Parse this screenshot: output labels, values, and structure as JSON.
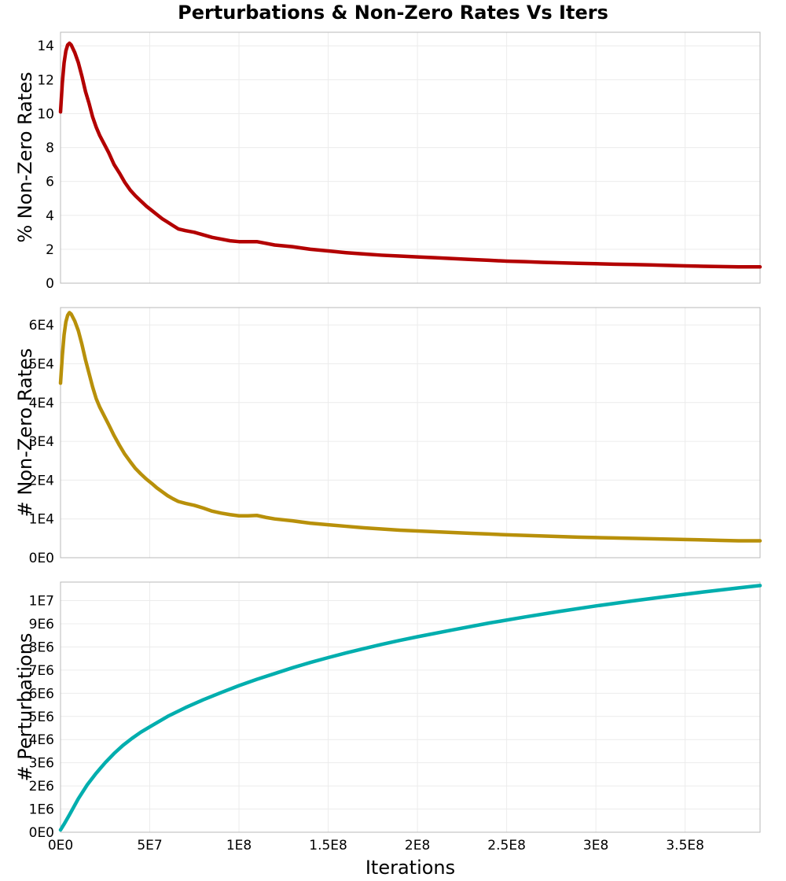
{
  "chart_data": [
    {
      "type": "line",
      "title": "Perturbations & Non-Zero Rates Vs Iters",
      "xlabel": "",
      "ylabel": "% Non-Zero Rates",
      "xlim": [
        0,
        392000000
      ],
      "ylim": [
        0,
        14.8
      ],
      "yticks": [
        0,
        2,
        4,
        6,
        8,
        10,
        12,
        14
      ],
      "ytick_labels": [
        "0",
        "2",
        "4",
        "6",
        "8",
        "10",
        "12",
        "14"
      ],
      "color": "#b30000",
      "series": [
        {
          "name": "% Non-Zero Rates",
          "x": [
            0,
            1000000,
            2000000,
            3000000,
            4000000,
            5000000,
            6000000,
            8000000,
            10000000,
            12000000,
            14000000,
            16000000,
            18000000,
            20000000,
            22000000,
            24000000,
            27000000,
            30000000,
            33000000,
            36000000,
            39000000,
            42000000,
            45000000,
            48000000,
            51000000,
            54000000,
            57000000,
            60000000,
            63000000,
            66000000,
            70000000,
            75000000,
            80000000,
            85000000,
            90000000,
            95000000,
            100000000,
            105000000,
            110000000,
            115000000,
            120000000,
            130000000,
            140000000,
            150000000,
            160000000,
            170000000,
            180000000,
            190000000,
            200000000,
            210000000,
            220000000,
            230000000,
            240000000,
            250000000,
            260000000,
            270000000,
            280000000,
            290000000,
            300000000,
            310000000,
            320000000,
            330000000,
            340000000,
            350000000,
            360000000,
            370000000,
            380000000,
            392000000
          ],
          "y": [
            10.1,
            11.8,
            13.0,
            13.7,
            14.05,
            14.15,
            14.05,
            13.6,
            13.0,
            12.2,
            11.3,
            10.6,
            9.8,
            9.2,
            8.7,
            8.3,
            7.7,
            7.0,
            6.5,
            5.95,
            5.5,
            5.15,
            4.85,
            4.55,
            4.3,
            4.05,
            3.8,
            3.6,
            3.4,
            3.2,
            3.1,
            3.0,
            2.85,
            2.7,
            2.6,
            2.5,
            2.45,
            2.45,
            2.45,
            2.35,
            2.25,
            2.15,
            2.0,
            1.9,
            1.8,
            1.72,
            1.65,
            1.6,
            1.55,
            1.5,
            1.45,
            1.4,
            1.35,
            1.3,
            1.27,
            1.23,
            1.2,
            1.17,
            1.15,
            1.12,
            1.1,
            1.08,
            1.05,
            1.02,
            1.0,
            0.98,
            0.96,
            0.96
          ]
        }
      ]
    },
    {
      "type": "line",
      "xlabel": "",
      "ylabel": "# Non-Zero Rates",
      "xlim": [
        0,
        392000000
      ],
      "ylim": [
        0,
        64500
      ],
      "yticks": [
        0,
        10000,
        20000,
        30000,
        40000,
        50000,
        60000
      ],
      "ytick_labels": [
        "0E0",
        "1E4",
        "2E4",
        "3E4",
        "4E4",
        "5E4",
        "6E4"
      ],
      "color": "#b8900a",
      "series": [
        {
          "name": "# Non-Zero Rates",
          "x": [
            0,
            1000000,
            2000000,
            3000000,
            4000000,
            5000000,
            6000000,
            8000000,
            10000000,
            12000000,
            14000000,
            16000000,
            18000000,
            20000000,
            22000000,
            24000000,
            27000000,
            30000000,
            33000000,
            36000000,
            39000000,
            42000000,
            45000000,
            48000000,
            51000000,
            54000000,
            57000000,
            60000000,
            63000000,
            66000000,
            70000000,
            75000000,
            80000000,
            85000000,
            90000000,
            95000000,
            100000000,
            105000000,
            110000000,
            115000000,
            120000000,
            130000000,
            140000000,
            150000000,
            160000000,
            170000000,
            180000000,
            190000000,
            200000000,
            210000000,
            220000000,
            230000000,
            240000000,
            250000000,
            260000000,
            270000000,
            280000000,
            290000000,
            300000000,
            310000000,
            320000000,
            330000000,
            340000000,
            350000000,
            360000000,
            370000000,
            380000000,
            392000000
          ],
          "y": [
            45000,
            52000,
            57500,
            60800,
            62500,
            63200,
            62800,
            61000,
            58500,
            55000,
            51000,
            47500,
            44000,
            41000,
            38800,
            37000,
            34300,
            31500,
            29000,
            26700,
            24800,
            23000,
            21600,
            20300,
            19200,
            18000,
            17000,
            16000,
            15200,
            14500,
            14000,
            13500,
            12800,
            12000,
            11500,
            11100,
            10800,
            10800,
            10900,
            10400,
            10000,
            9500,
            8900,
            8500,
            8100,
            7700,
            7400,
            7100,
            6900,
            6700,
            6500,
            6300,
            6100,
            5900,
            5750,
            5600,
            5450,
            5300,
            5200,
            5100,
            5000,
            4900,
            4800,
            4700,
            4600,
            4450,
            4350,
            4350
          ]
        }
      ]
    },
    {
      "type": "line",
      "xlabel": "Iterations",
      "ylabel": "# Perturbations",
      "xlim": [
        0,
        392000000
      ],
      "ylim": [
        0,
        10800000
      ],
      "xticks": [
        0,
        50000000,
        100000000,
        150000000,
        200000000,
        250000000,
        300000000,
        350000000
      ],
      "xtick_labels": [
        "0E0",
        "5E7",
        "1E8",
        "1.5E8",
        "2E8",
        "2.5E8",
        "3E8",
        "3.5E8"
      ],
      "yticks": [
        0,
        1000000,
        2000000,
        3000000,
        4000000,
        5000000,
        6000000,
        7000000,
        8000000,
        9000000,
        10000000
      ],
      "ytick_labels": [
        "0E0",
        "1E6",
        "2E6",
        "3E6",
        "4E6",
        "5E6",
        "6E6",
        "7E6",
        "8E6",
        "9E6",
        "1E7"
      ],
      "color": "#00aeae",
      "series": [
        {
          "name": "# Perturbations",
          "x": [
            0,
            2000000,
            5000000,
            10000000,
            15000000,
            20000000,
            25000000,
            30000000,
            35000000,
            40000000,
            45000000,
            50000000,
            60000000,
            70000000,
            80000000,
            90000000,
            100000000,
            110000000,
            120000000,
            130000000,
            140000000,
            150000000,
            160000000,
            170000000,
            180000000,
            190000000,
            200000000,
            220000000,
            240000000,
            260000000,
            280000000,
            300000000,
            320000000,
            340000000,
            360000000,
            380000000,
            392000000
          ],
          "y": [
            100000,
            350000,
            750000,
            1450000,
            2050000,
            2550000,
            3000000,
            3400000,
            3750000,
            4050000,
            4320000,
            4550000,
            5000000,
            5380000,
            5720000,
            6030000,
            6330000,
            6600000,
            6850000,
            7100000,
            7330000,
            7540000,
            7740000,
            7930000,
            8110000,
            8280000,
            8440000,
            8740000,
            9030000,
            9290000,
            9540000,
            9770000,
            9980000,
            10180000,
            10370000,
            10550000,
            10650000
          ]
        }
      ]
    }
  ]
}
